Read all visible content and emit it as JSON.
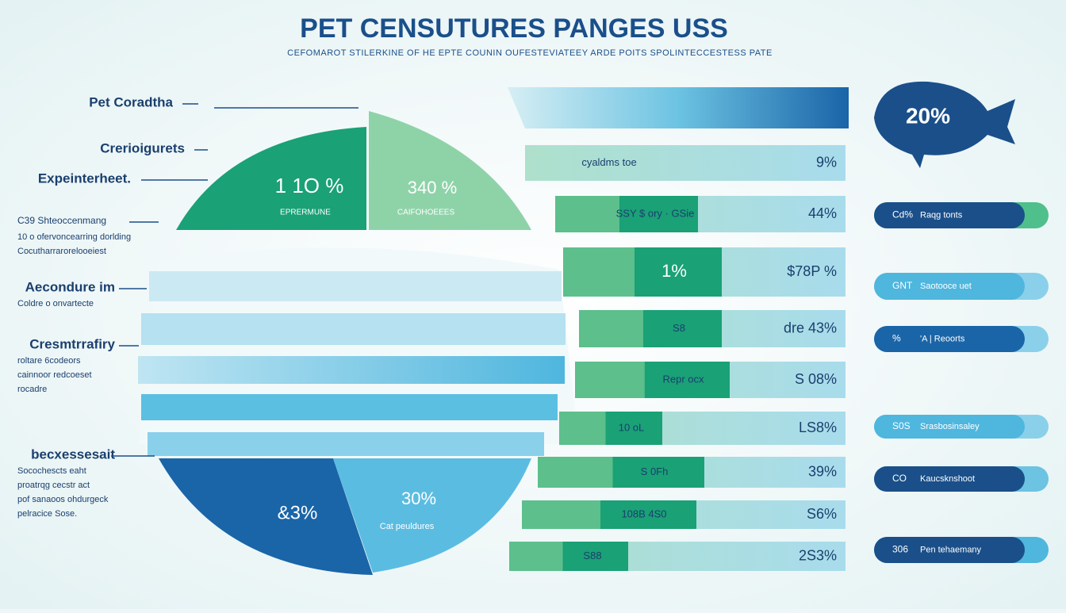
{
  "header": {
    "title": "PET CENSUTURES PANGES USS",
    "subtitle": "CEFOMAROT STILERKINE OF HE EPTE COUNIN OUFESTEVIATEEY ARDE POITS SPOLINTECCESTESS PATE"
  },
  "left_labels": [
    {
      "heading": "Pet Coradtha",
      "lines": []
    },
    {
      "heading": "Crerioigurets",
      "lines": []
    },
    {
      "heading": "Expeinterheet.",
      "lines": []
    },
    {
      "heading": "C39 Shteoccenmang",
      "lines": [
        "10 o ofervoncearring dorlding",
        "Cocutharrarorelooeiest"
      ]
    },
    {
      "heading": "Aecondure im",
      "lines": [
        "Coldre o onvartecte"
      ]
    },
    {
      "heading": "Cresmtrrafiry",
      "lines": [
        "roltare 6codeors",
        "cainnoor redcoeset",
        "rocadre"
      ]
    },
    {
      "heading": "becxessesait",
      "lines": [
        "Socochescts eaht",
        "proatrqg cecstr act",
        "pof sanaoos ohdurgeck",
        "pelracice Sose."
      ]
    }
  ],
  "pie": {
    "top_left": {
      "value": "1 1O %",
      "label": "EPRERMUNE"
    },
    "top_right": {
      "value": "340 %",
      "label": "CAIFOHOEEES"
    },
    "bottom_left": {
      "value": "&3%"
    },
    "bottom_right": {
      "value": "30%",
      "label": "Cat peuldures"
    }
  },
  "bars": [
    {
      "label": "cyaldms toe",
      "value": "9%"
    },
    {
      "label": "SSY $ ory · GSie",
      "value": "44%"
    },
    {
      "label": "1%",
      "value": "$78P %"
    },
    {
      "label": "S8",
      "value": "dre 43%"
    },
    {
      "label": "Repr ocx",
      "value": "S 08%"
    },
    {
      "label": "10 oL",
      "value": "LS8%"
    },
    {
      "label": "S 0Fh",
      "value": "39%"
    },
    {
      "label": "108B 4S0",
      "value": "S6%"
    },
    {
      "label": "S88",
      "value": "2S3%"
    }
  ],
  "badge": {
    "value": "20%"
  },
  "pills": [
    {
      "code": "Cd%",
      "label": "Raqg tonts"
    },
    {
      "code": "GNT",
      "label": "Saotooce uet"
    },
    {
      "code": "%",
      "label": "'A | Reoorts"
    },
    {
      "code": "S0S",
      "label": "Srasbosinsaley"
    },
    {
      "code": "CO",
      "label": "Kaucsknshoot"
    },
    {
      "code": "306",
      "label": "Pen tehaemany"
    }
  ]
}
